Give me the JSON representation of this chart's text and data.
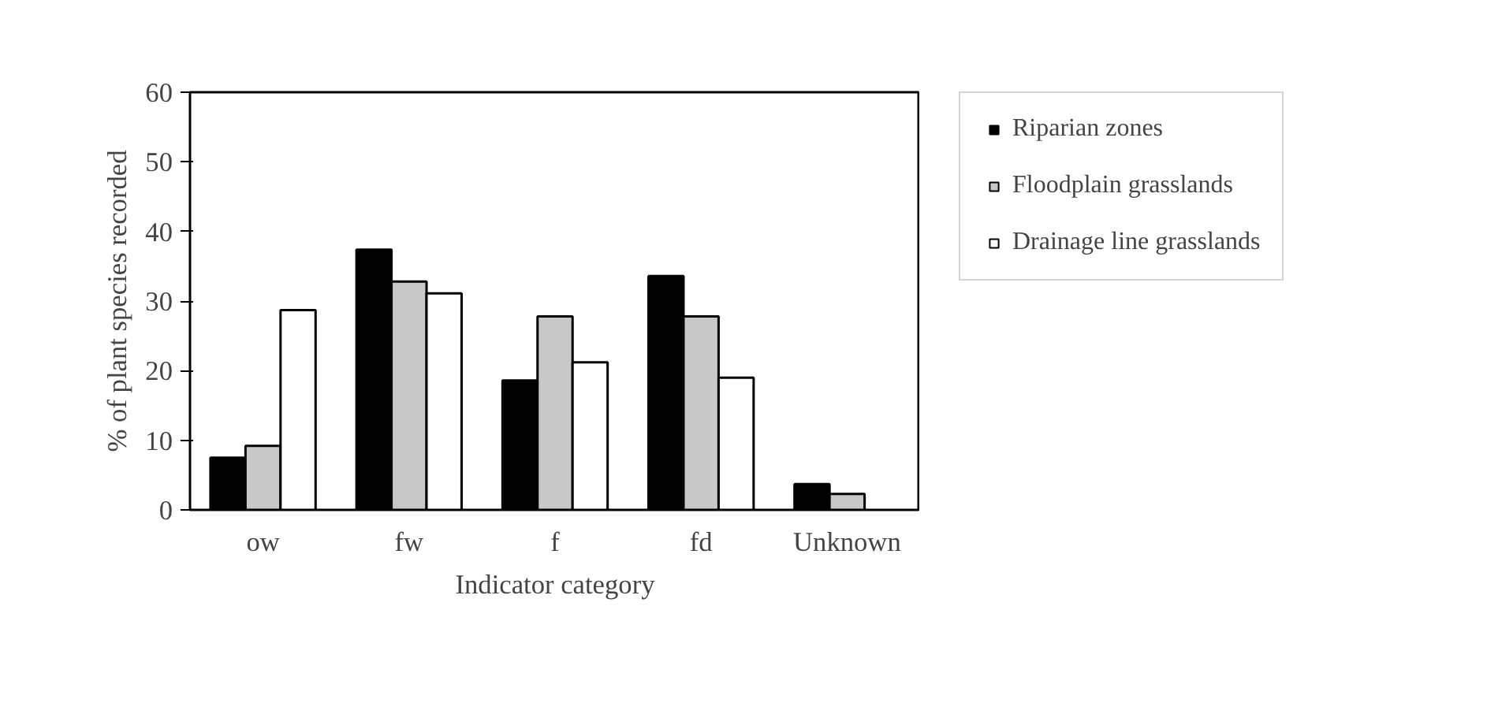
{
  "chart_data": {
    "type": "bar",
    "xlabel": "Indicator category",
    "ylabel": "% of plant species recorded",
    "categories": [
      "ow",
      "fw",
      "f",
      "fd",
      "Unknown"
    ],
    "series": [
      {
        "name": "Riparian zones",
        "color": "#000000",
        "values": [
          7.5,
          37.4,
          18.6,
          33.6,
          3.7
        ]
      },
      {
        "name": "Floodplain grasslands",
        "color": "#c8c8c8",
        "values": [
          9.2,
          32.8,
          27.8,
          27.8,
          2.3
        ]
      },
      {
        "name": "Drainage line grasslands",
        "color": "#ffffff",
        "values": [
          28.7,
          31.1,
          21.2,
          19.0,
          null
        ]
      }
    ],
    "ylim": [
      0,
      60
    ],
    "yticks": [
      0,
      10,
      20,
      30,
      40,
      50,
      60
    ],
    "grid": false,
    "legend": "right"
  }
}
